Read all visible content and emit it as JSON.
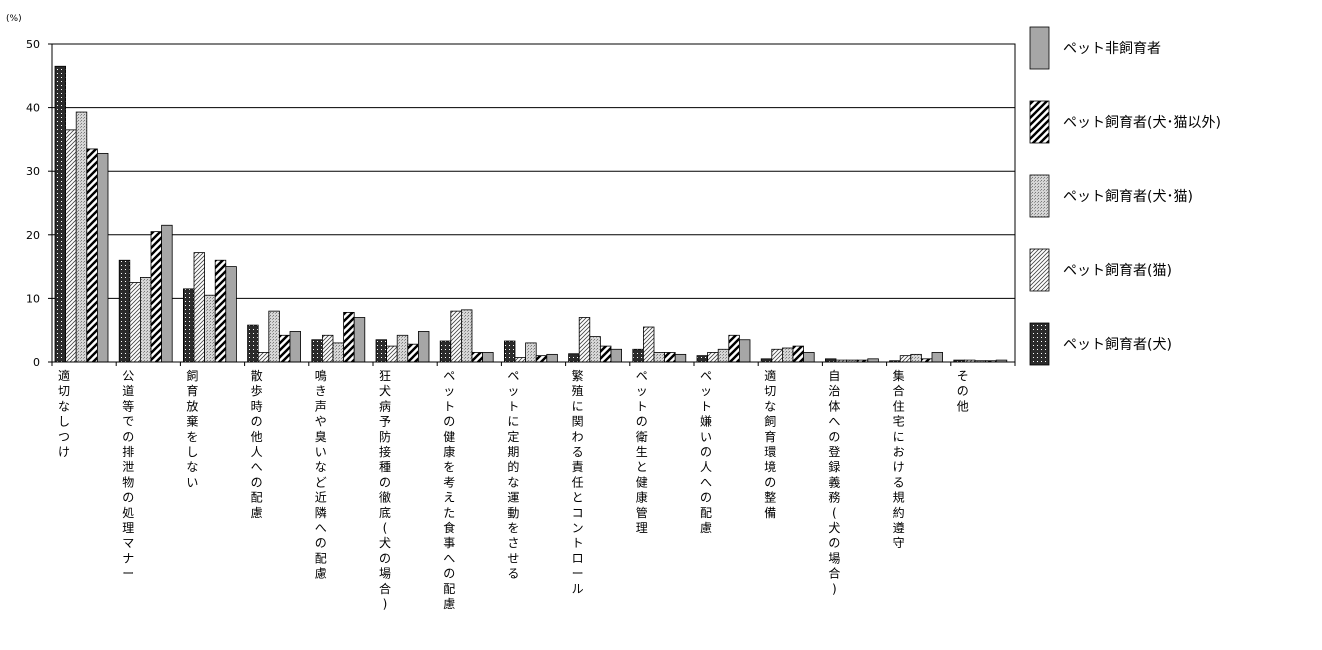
{
  "chart_data": {
    "type": "bar",
    "title": "",
    "xlabel": "",
    "ylabel": "(%)",
    "ylim": [
      0,
      50
    ],
    "yticks": [
      0,
      10,
      20,
      30,
      40,
      50
    ],
    "grid": true,
    "legend_position": "right",
    "categories": [
      "適切なしつけ",
      "公道等での排泄物の処理マナー",
      "飼育放棄をしない",
      "散歩時の他人への配慮",
      "鳴き声や臭いなど近隣への配慮",
      "狂犬病予防接種の徹底(犬の場合)",
      "ペットの健康を考えた食事への配慮",
      "ペットに定期的な運動をさせる",
      "繁殖に関わる責任とコントロール",
      "ペットの衛生と健康管理",
      "ペット嫌いの人への配慮",
      "適切な飼育環境の整備",
      "自治体への登録義務(犬の場合)",
      "集合住宅における規約遵守",
      "その他"
    ],
    "series": [
      {
        "name": "ペット飼育者(犬)",
        "pattern": "dots-dark",
        "values": [
          46.5,
          16.0,
          11.5,
          5.8,
          3.5,
          3.5,
          3.3,
          3.3,
          1.3,
          2.0,
          1.0,
          0.5,
          0.5,
          0.2,
          0.3
        ]
      },
      {
        "name": "ペット飼育者(猫)",
        "pattern": "thin-hatch",
        "values": [
          36.5,
          12.5,
          17.2,
          1.5,
          4.2,
          2.5,
          8.0,
          0.7,
          7.0,
          5.5,
          1.5,
          2.0,
          0.3,
          1.0,
          0.3
        ]
      },
      {
        "name": "ペット飼育者(犬･猫)",
        "pattern": "dots-light",
        "values": [
          39.3,
          13.3,
          10.5,
          8.0,
          3.0,
          4.2,
          8.2,
          3.0,
          4.0,
          1.5,
          2.0,
          2.2,
          0.3,
          1.2,
          0.2
        ]
      },
      {
        "name": "ペット飼育者(犬･猫以外)",
        "pattern": "thick-hatch",
        "values": [
          33.5,
          20.5,
          16.0,
          4.2,
          7.8,
          2.8,
          1.5,
          1.0,
          2.5,
          1.5,
          4.2,
          2.5,
          0.3,
          0.5,
          0.2
        ]
      },
      {
        "name": "ペット非飼育者",
        "pattern": "solid-gray",
        "values": [
          32.8,
          21.5,
          15.0,
          4.8,
          7.0,
          4.8,
          1.5,
          1.2,
          2.0,
          1.2,
          3.5,
          1.5,
          0.5,
          1.5,
          0.3
        ]
      }
    ],
    "legend_order": [
      "ペット非飼育者",
      "ペット飼育者(犬･猫以外)",
      "ペット飼育者(犬･猫)",
      "ペット飼育者(猫)",
      "ペット飼育者(犬)"
    ]
  }
}
